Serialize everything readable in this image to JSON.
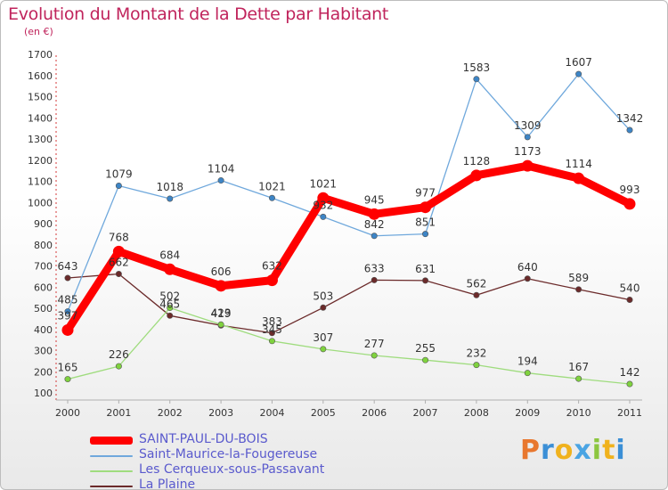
{
  "title": "Evolution du Montant de la Dette par Habitant",
  "unit": "(en €)",
  "logo": {
    "letters": [
      "P",
      "r",
      "o",
      "x",
      "i",
      "t",
      "i"
    ],
    "colors": [
      "#e8772e",
      "#3b8fd6",
      "#f0b21e",
      "#4aa4e3",
      "#8cc63f",
      "#f0b21e",
      "#3b8fd6"
    ]
  },
  "chart_data": {
    "type": "line",
    "title": "Evolution du Montant de la Dette par Habitant",
    "ylabel": "(en €)",
    "xlabel": "",
    "ylim": [
      100,
      1700
    ],
    "yticks": [
      100,
      200,
      300,
      400,
      500,
      600,
      700,
      800,
      900,
      1000,
      1100,
      1200,
      1300,
      1400,
      1500,
      1600,
      1700
    ],
    "x": [
      "2000",
      "2001",
      "2002",
      "2003",
      "2004",
      "2005",
      "2006",
      "2007",
      "2008",
      "2009",
      "2010",
      "2011"
    ],
    "grid": false,
    "legend_position": "bottom-left",
    "series": [
      {
        "name": "La Plaine",
        "color": "#6b2a2a",
        "values": [
          643,
          662,
          465,
          419,
          383,
          503,
          633,
          631,
          562,
          640,
          589,
          540
        ],
        "labels": [
          "643",
          "662",
          "465",
          "419",
          "383",
          "503",
          "633",
          "631",
          "562",
          "640",
          "589",
          "540"
        ]
      },
      {
        "name": "Les Cerqueux-sous-Passavant",
        "color": "#9fdc7e",
        "marker": "#7fd23e",
        "values": [
          165,
          226,
          502,
          423,
          345,
          307,
          277,
          255,
          232,
          194,
          167,
          142
        ],
        "labels": [
          "165",
          "226",
          "502",
          "423",
          "345",
          "307",
          "277",
          "255",
          "232",
          "194",
          "167",
          "142"
        ]
      },
      {
        "name": "Saint-Maurice-la-Fougereuse",
        "color": "#6fa8dc",
        "marker": "#3d85c6",
        "values": [
          485,
          1079,
          1018,
          1104,
          1021,
          932,
          842,
          851,
          1583,
          1309,
          1607,
          1342
        ],
        "labels": [
          "485",
          "1079",
          "1018",
          "1104",
          "1021",
          "932",
          "842",
          "851",
          "1583",
          "1309",
          "1607",
          "1342"
        ]
      },
      {
        "name": "SAINT-PAUL-DU-BOIS",
        "color": "#ff0000",
        "values": [
          397,
          768,
          684,
          606,
          632,
          1021,
          945,
          977,
          1128,
          1173,
          1114,
          993
        ],
        "labels": [
          "397",
          "768",
          "684",
          "606",
          "632",
          "1021",
          "945",
          "977",
          "1128",
          "1173",
          "1114",
          "993"
        ]
      }
    ],
    "legend": [
      "SAINT-PAUL-DU-BOIS",
      "Saint-Maurice-la-Fougereuse",
      "Les Cerqueux-sous-Passavant",
      "La Plaine"
    ]
  }
}
